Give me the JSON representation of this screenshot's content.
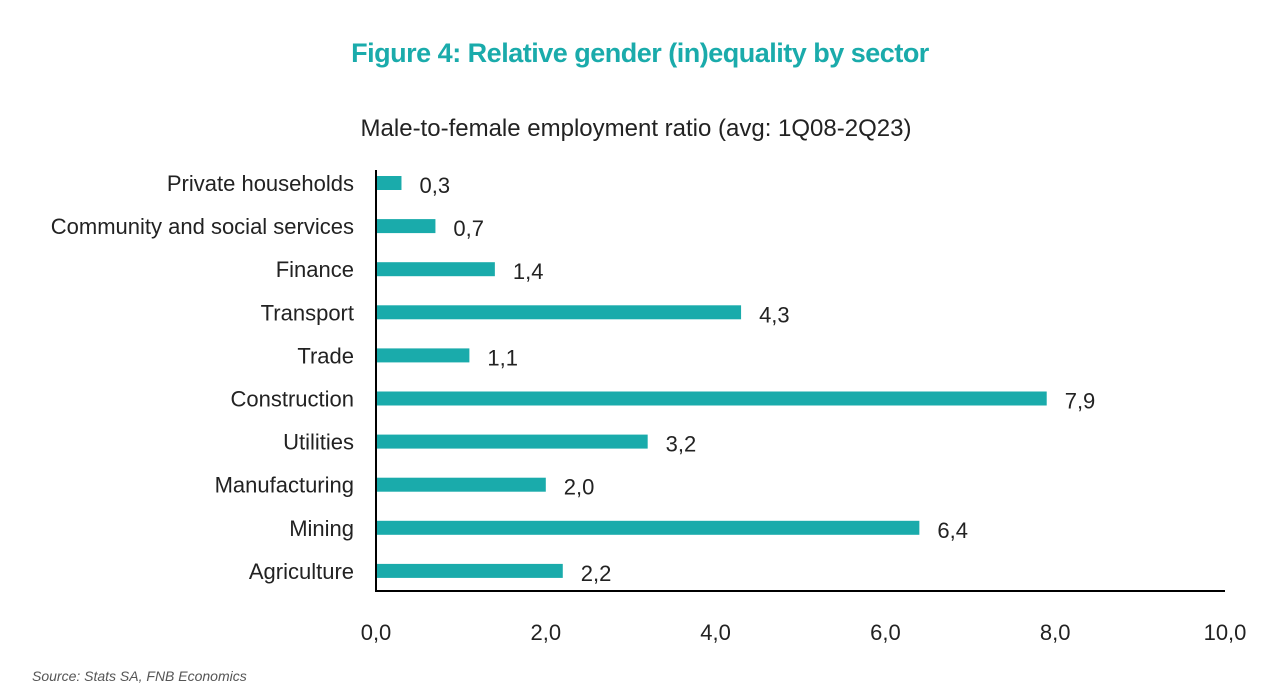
{
  "figure": {
    "title": "Figure 4: Relative gender (in)equality by sector",
    "source": "Source: Stats SA, FNB Economics"
  },
  "colors": {
    "bar": "#1aabab",
    "title": "#1aabab",
    "axis": "#000000"
  },
  "chart_data": {
    "type": "bar",
    "orientation": "horizontal",
    "title": "Male-to-female employment ratio (avg: 1Q08-2Q23)",
    "xlabel": "",
    "ylabel": "",
    "categories": [
      "Private households",
      "Community and social services",
      "Finance",
      "Transport",
      "Trade",
      "Construction",
      "Utilities",
      "Manufacturing",
      "Mining",
      "Agriculture"
    ],
    "values": [
      0.3,
      0.7,
      1.4,
      4.3,
      1.1,
      7.9,
      3.2,
      2.0,
      6.4,
      2.2
    ],
    "value_labels": [
      "0,3",
      "0,7",
      "1,4",
      "4,3",
      "1,1",
      "7,9",
      "3,2",
      "2,0",
      "6,4",
      "2,2"
    ],
    "xlim": [
      0,
      10
    ],
    "xticks": [
      0,
      2,
      4,
      6,
      8,
      10
    ],
    "xtick_labels": [
      "0,0",
      "2,0",
      "4,0",
      "6,0",
      "8,0",
      "10,0"
    ],
    "grid": false,
    "legend": "none"
  }
}
